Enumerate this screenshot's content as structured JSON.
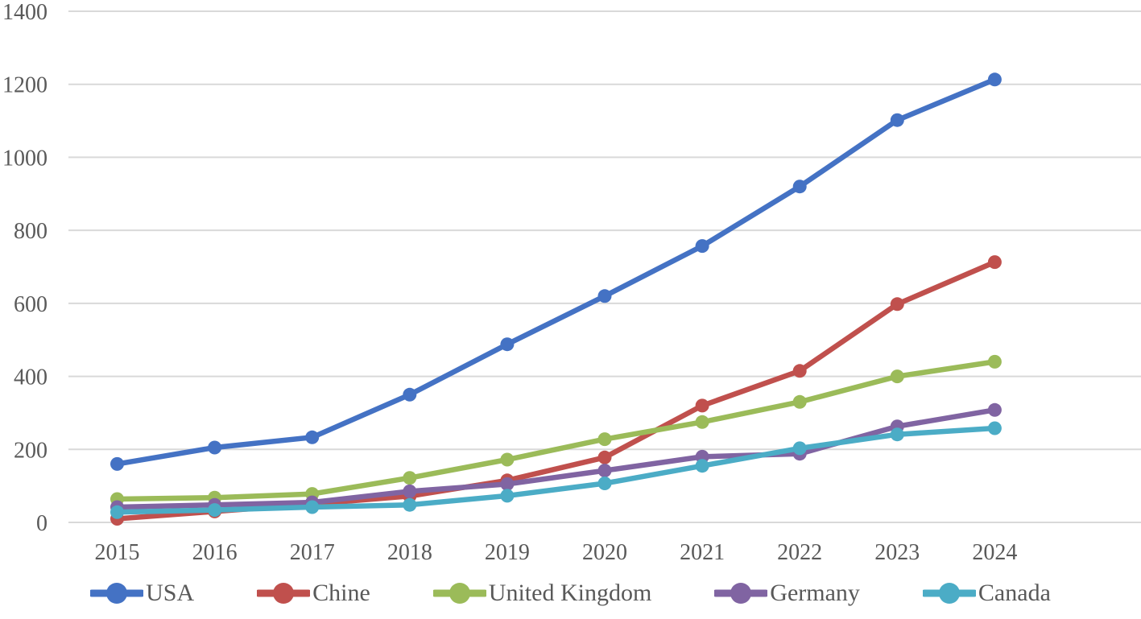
{
  "chart_data": {
    "type": "line",
    "title": "",
    "categories": [
      "2015",
      "2016",
      "2017",
      "2018",
      "2019",
      "2020",
      "2021",
      "2022",
      "2023",
      "2024"
    ],
    "series": [
      {
        "name": "USA",
        "color": "#4472C4",
        "values": [
          160,
          205,
          233,
          350,
          488,
          620,
          757,
          920,
          1102,
          1213
        ]
      },
      {
        "name": "Chine",
        "color": "#C0504D",
        "values": [
          10,
          30,
          50,
          72,
          115,
          178,
          320,
          415,
          598,
          713
        ]
      },
      {
        "name": "United Kingdom",
        "color": "#9BBB59",
        "values": [
          64,
          68,
          78,
          122,
          172,
          228,
          275,
          330,
          400,
          440
        ]
      },
      {
        "name": "Germany",
        "color": "#8064A2",
        "values": [
          42,
          48,
          55,
          85,
          105,
          142,
          180,
          188,
          263,
          308
        ]
      },
      {
        "name": "Canada",
        "color": "#4BACC6",
        "values": [
          28,
          34,
          42,
          48,
          73,
          107,
          155,
          203,
          241,
          258
        ]
      }
    ],
    "xlabel": "",
    "ylabel": "",
    "ylim": [
      0,
      1400
    ],
    "yticks": [
      0,
      200,
      400,
      600,
      800,
      1000,
      1200,
      1400
    ],
    "grid": "horizontal",
    "legend_position": "bottom",
    "axis_text_color": "#595959",
    "gridline_color": "#D9D9D9",
    "background_color": "#FFFFFF"
  }
}
